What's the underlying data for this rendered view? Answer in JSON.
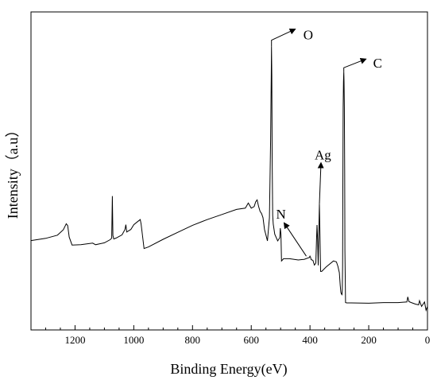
{
  "chart_data": {
    "type": "line",
    "title": "",
    "xlabel": "Binding Energy(eV)",
    "ylabel": "Intensity（a.u）",
    "xlim": [
      1350,
      0
    ],
    "x_reversed": true,
    "ylim": [
      0,
      100
    ],
    "x_ticks": [
      1200,
      1000,
      800,
      600,
      400,
      200,
      0
    ],
    "x_tick_labels": [
      "1200",
      "1000",
      "800",
      "600",
      "400",
      "200",
      "0"
    ],
    "y_tick_labels_shown": false,
    "grid": false,
    "legend": "none",
    "line_color": "#000000",
    "annotations": [
      {
        "label": "O",
        "peak_x": 531,
        "peak_y": 89.1
      },
      {
        "label": "C",
        "peak_x": 285,
        "peak_y": 81.2
      },
      {
        "label": "Ag",
        "peak_x": 368,
        "peak_y": 39.6
      },
      {
        "label": "N",
        "peak_x": 399,
        "peak_y": 23.2
      }
    ],
    "series": [
      {
        "x": [
          1350,
          1300,
          1260,
          1240,
          1230,
          1225,
          1220,
          1210,
          1180,
          1140,
          1130,
          1100,
          1080,
          1075,
          1073,
          1071,
          1068,
          1060,
          1040,
          1030,
          1027,
          1024,
          1010,
          1000,
          985,
          978,
          975,
          972,
          965,
          950,
          900,
          850,
          800,
          750,
          700,
          650,
          620,
          610,
          600,
          590,
          585,
          580,
          575,
          570,
          565,
          560,
          555,
          545,
          538,
          534,
          532,
          531,
          530,
          529,
          527,
          525,
          520,
          510,
          503,
          501,
          499,
          497,
          490,
          470,
          440,
          420,
          402,
          400,
          398,
          396,
          390,
          385,
          380,
          378,
          376,
          374,
          372,
          370,
          368,
          366,
          364,
          360,
          345,
          320,
          310,
          305,
          300,
          297,
          295,
          293,
          291,
          290,
          289,
          288,
          287,
          286,
          285,
          284,
          283,
          282,
          281,
          279,
          275,
          260,
          200,
          150,
          100,
          70,
          67,
          63,
          55,
          40,
          30,
          27,
          20,
          10,
          5,
          0
        ],
        "y": [
          28.1,
          28.8,
          29.8,
          31.5,
          33.4,
          32.8,
          29.2,
          26.7,
          26.8,
          27.3,
          26.8,
          27.4,
          28.4,
          28.9,
          42.1,
          29.7,
          28.6,
          28.9,
          29.9,
          31.6,
          33.1,
          30.8,
          31.6,
          33.1,
          34.2,
          34.7,
          33.3,
          31.0,
          25.6,
          26.1,
          28.5,
          30.7,
          32.9,
          34.7,
          36.3,
          37.9,
          38.3,
          39.9,
          38.3,
          38.8,
          40.3,
          40.9,
          38.8,
          37.3,
          36.6,
          35.3,
          31.6,
          28.0,
          35.3,
          60.0,
          80.0,
          89.1,
          80.0,
          55.0,
          36.0,
          33.3,
          30.1,
          28.0,
          29.0,
          32.0,
          30.1,
          21.7,
          22.4,
          22.4,
          22.0,
          22.2,
          22.8,
          23.2,
          22.8,
          22.1,
          21.9,
          20.4,
          21.0,
          27.9,
          33.0,
          28.0,
          20.3,
          30.0,
          39.6,
          30.0,
          18.4,
          18.4,
          19.8,
          21.7,
          21.4,
          20.0,
          18.0,
          14.0,
          11.8,
          11.3,
          11.1,
          12.5,
          20.0,
          45.0,
          70.0,
          78.0,
          81.2,
          78.0,
          70.0,
          50.0,
          25.0,
          8.6,
          8.5,
          8.5,
          8.4,
          8.6,
          8.6,
          8.8,
          10.4,
          8.9,
          8.6,
          8.1,
          7.9,
          9.2,
          7.4,
          8.8,
          6.2,
          7.4
        ]
      }
    ]
  }
}
